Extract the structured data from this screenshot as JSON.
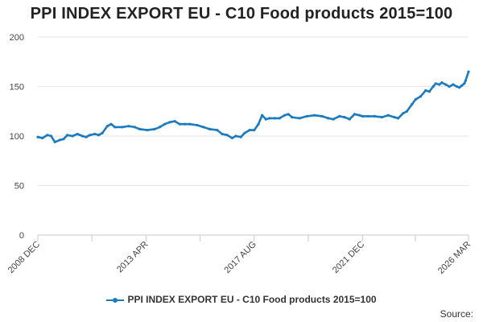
{
  "chart_data": {
    "type": "line",
    "title": "PPI INDEX EXPORT EU - C10 Food products 2015=100",
    "xlabel": "",
    "ylabel": "",
    "ylim": [
      0,
      200
    ],
    "yticks": [
      0,
      50,
      100,
      150,
      200
    ],
    "xlim": [
      2008.917,
      2026.167
    ],
    "xticks": [
      {
        "label": "2008 DEC",
        "value": 2008.917
      },
      {
        "label": "2013 APR",
        "value": 2013.25
      },
      {
        "label": "2017 AUG",
        "value": 2017.583
      },
      {
        "label": "2021 DEC",
        "value": 2021.917
      },
      {
        "label": "2026 MAR",
        "value": 2026.167
      }
    ],
    "minor_xticks": [
      2011.083,
      2015.417,
      2019.75,
      2024.042
    ],
    "series": [
      {
        "name": "PPI INDEX EXPORT EU - C10 Food products 2015=100",
        "color": "#1b7bc0",
        "points": [
          [
            2008.917,
            99
          ],
          [
            2009.1,
            98
          ],
          [
            2009.3,
            101
          ],
          [
            2009.45,
            100
          ],
          [
            2009.6,
            94
          ],
          [
            2009.8,
            96
          ],
          [
            2009.95,
            97
          ],
          [
            2010.1,
            101
          ],
          [
            2010.3,
            100
          ],
          [
            2010.5,
            102
          ],
          [
            2010.7,
            100
          ],
          [
            2010.85,
            99
          ],
          [
            2011.0,
            101
          ],
          [
            2011.2,
            102
          ],
          [
            2011.35,
            101
          ],
          [
            2011.5,
            103
          ],
          [
            2011.7,
            110
          ],
          [
            2011.85,
            112
          ],
          [
            2012.0,
            109
          ],
          [
            2012.3,
            109
          ],
          [
            2012.55,
            110
          ],
          [
            2012.8,
            109
          ],
          [
            2013.0,
            107
          ],
          [
            2013.3,
            106
          ],
          [
            2013.6,
            107
          ],
          [
            2013.8,
            109
          ],
          [
            2014.0,
            112
          ],
          [
            2014.2,
            114
          ],
          [
            2014.4,
            115
          ],
          [
            2014.6,
            112
          ],
          [
            2014.8,
            112
          ],
          [
            2015.0,
            112
          ],
          [
            2015.3,
            111
          ],
          [
            2015.55,
            109
          ],
          [
            2015.8,
            107
          ],
          [
            2016.1,
            106
          ],
          [
            2016.3,
            102
          ],
          [
            2016.5,
            101
          ],
          [
            2016.7,
            98
          ],
          [
            2016.85,
            100
          ],
          [
            2017.05,
            99
          ],
          [
            2017.2,
            103
          ],
          [
            2017.4,
            106
          ],
          [
            2017.583,
            106
          ],
          [
            2017.75,
            112
          ],
          [
            2017.9,
            121
          ],
          [
            2018.05,
            117
          ],
          [
            2018.2,
            118
          ],
          [
            2018.4,
            118
          ],
          [
            2018.6,
            118
          ],
          [
            2018.8,
            121
          ],
          [
            2018.95,
            122
          ],
          [
            2019.1,
            119
          ],
          [
            2019.4,
            118
          ],
          [
            2019.7,
            120
          ],
          [
            2020.0,
            121
          ],
          [
            2020.3,
            120
          ],
          [
            2020.55,
            118
          ],
          [
            2020.75,
            117
          ],
          [
            2021.0,
            120
          ],
          [
            2021.2,
            119
          ],
          [
            2021.4,
            117
          ],
          [
            2021.6,
            122
          ],
          [
            2021.8,
            121
          ],
          [
            2021.917,
            120
          ],
          [
            2022.15,
            120
          ],
          [
            2022.4,
            120
          ],
          [
            2022.7,
            119
          ],
          [
            2022.95,
            121
          ],
          [
            2023.2,
            119
          ],
          [
            2023.35,
            118
          ],
          [
            2023.55,
            123
          ],
          [
            2023.7,
            125
          ],
          [
            2023.9,
            132
          ],
          [
            2024.05,
            137
          ],
          [
            2024.25,
            140
          ],
          [
            2024.45,
            146
          ],
          [
            2024.6,
            145
          ],
          [
            2024.75,
            150
          ],
          [
            2024.85,
            153
          ],
          [
            2025.0,
            152
          ],
          [
            2025.1,
            154
          ],
          [
            2025.25,
            152
          ],
          [
            2025.4,
            150
          ],
          [
            2025.55,
            152
          ],
          [
            2025.7,
            150
          ],
          [
            2025.8,
            149
          ],
          [
            2025.9,
            151
          ],
          [
            2026.0,
            153
          ],
          [
            2026.05,
            156
          ],
          [
            2026.167,
            165
          ]
        ]
      }
    ],
    "legend": {
      "label": "PPI INDEX EXPORT EU - C10 Food products 2015=100",
      "position": "bottom"
    },
    "grid": true,
    "source_label": "Source:"
  }
}
